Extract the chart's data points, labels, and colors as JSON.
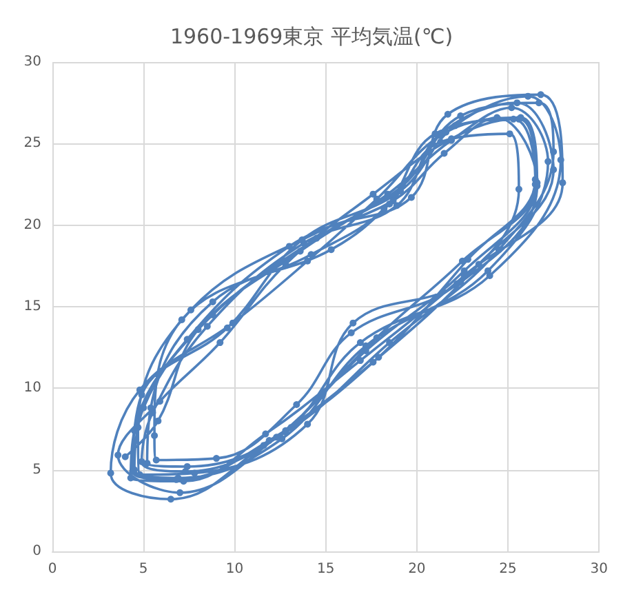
{
  "chart_data": {
    "type": "line",
    "title": "1960-1969東京 平均気温(℃)",
    "marker": "circle",
    "grid": true,
    "xlim": [
      0,
      30
    ],
    "xticks": [
      0,
      5,
      10,
      15,
      20,
      25,
      30
    ],
    "ylim": [
      0,
      30
    ],
    "yticks": [
      0,
      5,
      10,
      15,
      20,
      25,
      30
    ],
    "series": [
      {
        "color": "#4f81bd",
        "x": [
          4.0,
          5.8,
          8.0,
          13.6,
          18.4,
          21.9,
          25.2,
          27.2,
          23.9,
          17.2,
          12.6,
          6.9,
          4.5,
          5.0,
          8.8,
          14.5,
          19.2,
          22.4,
          26.7,
          27.5,
          24.5,
          18.5,
          12.8,
          7.3,
          4.9,
          5.5,
          8.5,
          13.8,
          18.9,
          21.2,
          25.5,
          27.5,
          23.4,
          17.6,
          11.6,
          6.5,
          3.2,
          4.8,
          9.9,
          14.0,
          17.8,
          21.6,
          25.7,
          26.6,
          22.4,
          16.5,
          14.0,
          7.8,
          4.8,
          4.7,
          7.6,
          14.8,
          19.7,
          21.7,
          26.8,
          28.0,
          22.6,
          16.9,
          11.7,
          7.2,
          4.3,
          4.5,
          7.4,
          13.0,
          18.7,
          21.5,
          24.4,
          26.6,
          22.6,
          17.2,
          12.3,
          7.0,
          3.6,
          5.9,
          9.2,
          12.8,
          17.6,
          21.9,
          25.3,
          26.5,
          22.8,
          17.9,
          11.9,
          6.8,
          4.4,
          4.9,
          9.6,
          13.7,
          19.1,
          22.1,
          26.1,
          27.9,
          24.0,
          16.9,
          12.8,
          7.4,
          5.2,
          5.4,
          8.8,
          15.3,
          18.5,
          21.3,
          25.1,
          25.6,
          22.2,
          16.4,
          13.4,
          9.0,
          5.7,
          5.6,
          7.1,
          14.2,
          18.2,
          21.0,
          25.6,
          26.5,
          22.5,
          17.8,
          13.1
        ],
        "values": [
          5.8,
          8.0,
          13.6,
          18.4,
          21.9,
          25.2,
          27.2,
          23.9,
          17.2,
          12.6,
          6.9,
          4.5,
          5.0,
          8.8,
          14.5,
          19.2,
          22.4,
          26.7,
          27.5,
          24.5,
          18.5,
          12.8,
          7.3,
          4.9,
          5.5,
          8.5,
          13.8,
          18.9,
          21.2,
          25.5,
          27.5,
          23.4,
          17.6,
          11.6,
          6.5,
          3.2,
          4.8,
          9.9,
          14.0,
          17.8,
          21.6,
          25.7,
          26.6,
          22.4,
          16.5,
          14.0,
          7.8,
          4.8,
          4.7,
          7.6,
          14.8,
          19.7,
          21.7,
          26.8,
          28.0,
          22.6,
          16.9,
          11.7,
          7.2,
          4.3,
          4.5,
          7.4,
          13.0,
          18.7,
          21.5,
          24.4,
          26.6,
          22.6,
          17.2,
          12.3,
          7.0,
          3.6,
          5.9,
          9.2,
          12.8,
          17.6,
          21.9,
          25.3,
          26.5,
          22.8,
          17.9,
          11.9,
          6.8,
          4.4,
          4.9,
          9.6,
          13.7,
          19.1,
          22.1,
          26.1,
          27.9,
          24.0,
          16.9,
          12.8,
          7.4,
          5.2,
          5.4,
          8.8,
          15.3,
          18.5,
          21.3,
          25.1,
          25.6,
          22.2,
          16.4,
          13.4,
          9.0,
          5.7,
          5.6,
          7.1,
          14.2,
          18.2,
          21.0,
          25.6,
          26.5,
          22.5,
          17.8,
          13.1,
          7.6
        ]
      }
    ]
  }
}
